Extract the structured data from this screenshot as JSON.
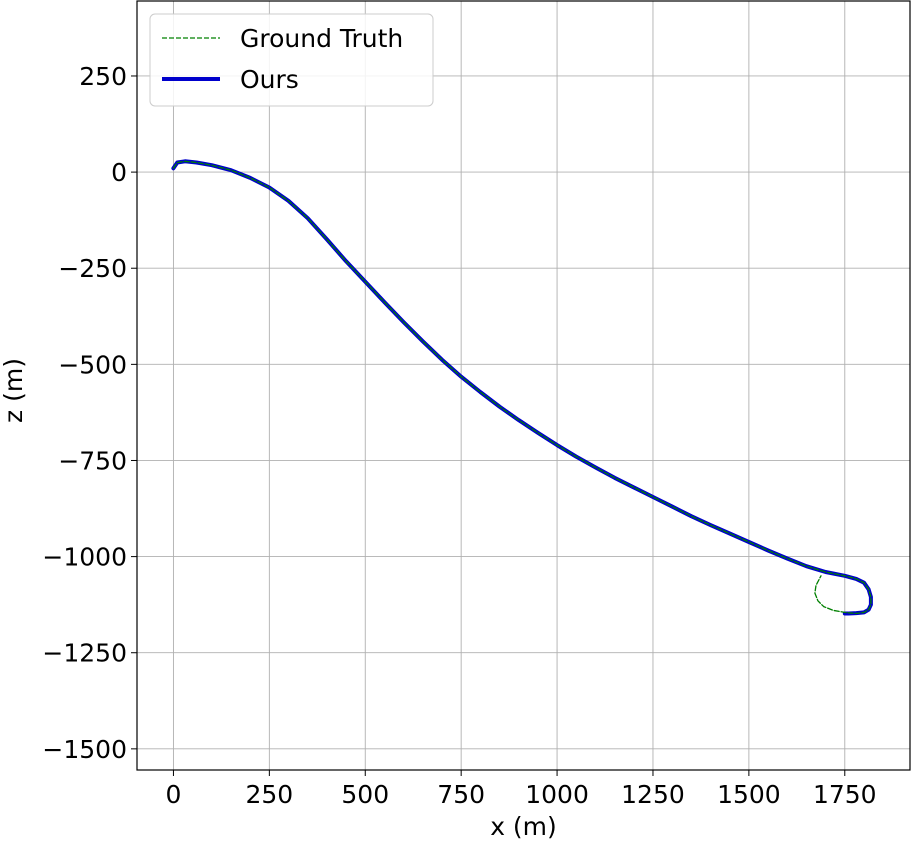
{
  "chart_data": {
    "type": "line",
    "xlabel": "x (m)",
    "ylabel": "z (m)",
    "xlim": [
      -95,
      1920
    ],
    "ylim": [
      -1555,
      445
    ],
    "xticks": [
      0,
      250,
      500,
      750,
      1000,
      1250,
      1500,
      1750
    ],
    "yticks": [
      250,
      0,
      -250,
      -500,
      -750,
      -1000,
      -1250,
      -1500
    ],
    "xtick_labels": [
      "0",
      "250",
      "500",
      "750",
      "1000",
      "1250",
      "1500",
      "1750"
    ],
    "ytick_labels": [
      "250",
      "0",
      "−250",
      "−500",
      "−750",
      "−1000",
      "−1250",
      "−1500"
    ],
    "grid": true,
    "legend_position": "top-left",
    "series": [
      {
        "name": "Ground Truth",
        "color": "#008000",
        "style": "dashed",
        "x": [
          0,
          10,
          30,
          60,
          100,
          150,
          200,
          250,
          300,
          350,
          400,
          450,
          500,
          550,
          600,
          650,
          700,
          750,
          800,
          850,
          900,
          950,
          1000,
          1050,
          1100,
          1150,
          1200,
          1250,
          1300,
          1350,
          1400,
          1450,
          1500,
          1550,
          1600,
          1650,
          1700,
          1750,
          1780,
          1800,
          1812,
          1818,
          1818,
          1812,
          1800,
          1780,
          1750,
          1720,
          1695,
          1680,
          1672,
          1675,
          1688
        ],
        "y": [
          10,
          25,
          28,
          25,
          18,
          5,
          -15,
          -40,
          -75,
          -120,
          -175,
          -232,
          -285,
          -338,
          -390,
          -440,
          -488,
          -532,
          -572,
          -610,
          -645,
          -678,
          -710,
          -740,
          -768,
          -795,
          -820,
          -845,
          -870,
          -895,
          -918,
          -940,
          -962,
          -984,
          -1005,
          -1025,
          -1040,
          -1050,
          -1058,
          -1068,
          -1085,
          -1105,
          -1125,
          -1138,
          -1145,
          -1148,
          -1145,
          -1140,
          -1130,
          -1115,
          -1095,
          -1075,
          -1050
        ]
      },
      {
        "name": "Ours",
        "color": "#0000cc",
        "style": "solid",
        "x": [
          0,
          10,
          30,
          60,
          100,
          150,
          200,
          250,
          300,
          350,
          400,
          450,
          500,
          550,
          600,
          650,
          700,
          750,
          800,
          850,
          900,
          950,
          1000,
          1050,
          1100,
          1150,
          1200,
          1250,
          1300,
          1350,
          1400,
          1450,
          1500,
          1550,
          1600,
          1650,
          1700,
          1750,
          1780,
          1800,
          1812,
          1818,
          1818,
          1812,
          1800,
          1780,
          1760,
          1750
        ],
        "y": [
          10,
          25,
          28,
          25,
          18,
          5,
          -15,
          -40,
          -75,
          -120,
          -175,
          -232,
          -285,
          -338,
          -390,
          -440,
          -488,
          -532,
          -572,
          -610,
          -645,
          -678,
          -710,
          -740,
          -768,
          -795,
          -820,
          -845,
          -870,
          -895,
          -918,
          -940,
          -962,
          -984,
          -1005,
          -1025,
          -1040,
          -1050,
          -1058,
          -1068,
          -1085,
          -1105,
          -1125,
          -1138,
          -1145,
          -1147,
          -1148,
          -1148
        ]
      }
    ]
  }
}
